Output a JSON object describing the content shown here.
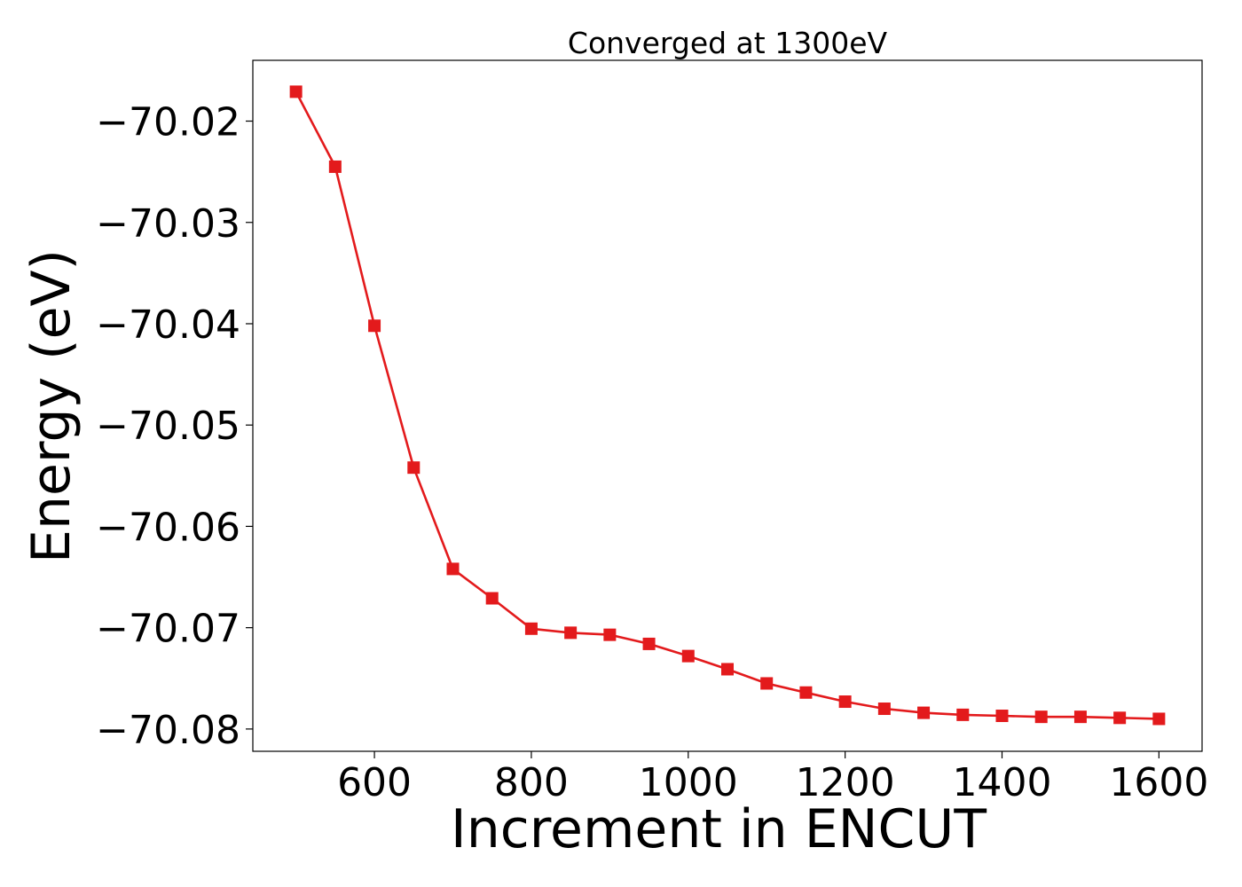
{
  "chart_data": {
    "type": "line",
    "title": "Converged at 1300eV",
    "xlabel": "Increment in ENCUT",
    "ylabel": "Energy (eV)",
    "xlim": [
      445,
      1655
    ],
    "ylim": [
      -70.0822,
      -70.014
    ],
    "xticks": [
      600,
      800,
      1000,
      1200,
      1400,
      1600
    ],
    "xtick_labels": [
      "600",
      "800",
      "1000",
      "1200",
      "1400",
      "1600"
    ],
    "yticks": [
      -70.02,
      -70.03,
      -70.04,
      -70.05,
      -70.06,
      -70.07,
      -70.08
    ],
    "ytick_labels": [
      "−70.02",
      "−70.03",
      "−70.04",
      "−70.05",
      "−70.06",
      "−70.07",
      "−70.08"
    ],
    "grid": false,
    "marker": "square",
    "series": [
      {
        "color": "#e31a1c",
        "x": [
          500,
          550,
          600,
          650,
          700,
          750,
          800,
          850,
          900,
          950,
          1000,
          1050,
          1100,
          1150,
          1200,
          1250,
          1300,
          1350,
          1400,
          1450,
          1500,
          1550,
          1600
        ],
        "y": [
          -70.0171,
          -70.0245,
          -70.0402,
          -70.0542,
          -70.0642,
          -70.0671,
          -70.0701,
          -70.0705,
          -70.0707,
          -70.0716,
          -70.0728,
          -70.0741,
          -70.0755,
          -70.0764,
          -70.0773,
          -70.078,
          -70.0784,
          -70.0786,
          -70.0787,
          -70.0788,
          -70.0788,
          -70.0789,
          -70.079
        ]
      }
    ]
  }
}
